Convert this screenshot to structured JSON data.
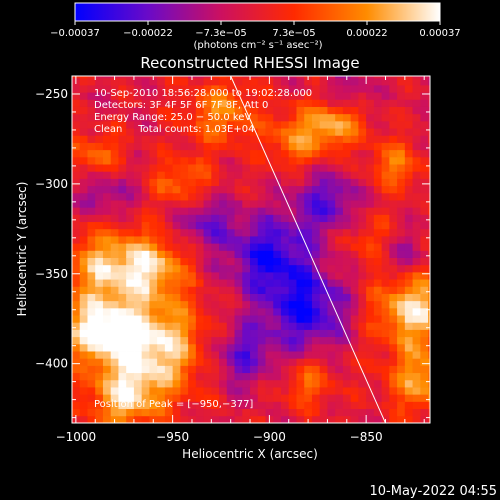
{
  "chart_data": {
    "type": "heatmap",
    "title": "Reconstructed RHESSI Image",
    "xlabel": "Heliocentric X (arcsec)",
    "ylabel": "Heliocentric Y (arcsec)",
    "xlim": [
      -1002,
      -817
    ],
    "ylim": [
      -433,
      -240
    ],
    "x_ticks": [
      -1000,
      -950,
      -900,
      -850
    ],
    "y_ticks": [
      -250,
      -300,
      -350,
      -400
    ],
    "x_tick_labels": [
      "−1000",
      "−950",
      "−900",
      "−850"
    ],
    "y_tick_labels": [
      "−250",
      "−300",
      "−350",
      "−400"
    ],
    "colorbar": {
      "range": [
        -0.00037,
        0.00037
      ],
      "tick_labels": [
        "−0.00037",
        "−0.00022",
        "−7.3e−05",
        "7.3e−05",
        "0.00022",
        "0.00037"
      ],
      "label": "(photons cm⁻² s⁻¹ asec⁻²)",
      "stops": [
        "#0000ff",
        "#6a0ac8",
        "#cc1060",
        "#ff2a00",
        "#ff8c00",
        "#ffffff"
      ]
    },
    "info_lines": [
      "10‑Sep‑2010 18:56:28.000 to 19:02:28.000",
      "Detectors: 3F 4F 5F 6F 7F 8F, Att 0",
      "Energy Range: 25.0 − 50.0 keV",
      "Clean     Total counts: 1.03E+04"
    ],
    "peak_label": "Position of Peak = [−950,−377]",
    "peak": [
      -950,
      -377
    ],
    "limb_line": [
      [
        -920,
        -240
      ],
      [
        -840,
        -433
      ]
    ],
    "blobs": [
      {
        "x": -960,
        "y": -390,
        "v": 1.0,
        "r": 28
      },
      {
        "x": -990,
        "y": -380,
        "v": 0.85,
        "r": 18
      },
      {
        "x": -985,
        "y": -345,
        "v": 0.75,
        "r": 20
      },
      {
        "x": -960,
        "y": -345,
        "v": 0.7,
        "r": 18
      },
      {
        "x": -975,
        "y": -420,
        "v": 0.7,
        "r": 18
      },
      {
        "x": -945,
        "y": -300,
        "v": 0.55,
        "r": 15
      },
      {
        "x": -925,
        "y": -260,
        "v": 0.6,
        "r": 18
      },
      {
        "x": -885,
        "y": -275,
        "v": 0.6,
        "r": 16
      },
      {
        "x": -865,
        "y": -265,
        "v": 0.7,
        "r": 14
      },
      {
        "x": -835,
        "y": -290,
        "v": 0.55,
        "r": 14
      },
      {
        "x": -825,
        "y": -370,
        "v": 0.9,
        "r": 22
      },
      {
        "x": -820,
        "y": -410,
        "v": 0.7,
        "r": 18
      },
      {
        "x": -880,
        "y": -410,
        "v": 0.45,
        "r": 14
      },
      {
        "x": -990,
        "y": -285,
        "v": 0.5,
        "r": 14
      },
      {
        "x": -850,
        "y": -330,
        "v": 0.35,
        "r": 15
      },
      {
        "x": -900,
        "y": -340,
        "v": -0.8,
        "r": 22
      },
      {
        "x": -880,
        "y": -370,
        "v": -0.8,
        "r": 22
      },
      {
        "x": -870,
        "y": -310,
        "v": -0.6,
        "r": 18
      },
      {
        "x": -915,
        "y": -395,
        "v": -0.6,
        "r": 18
      },
      {
        "x": -935,
        "y": -320,
        "v": -0.5,
        "r": 16
      },
      {
        "x": -985,
        "y": -305,
        "v": -0.45,
        "r": 14
      },
      {
        "x": -860,
        "y": -250,
        "v": -0.4,
        "r": 12
      },
      {
        "x": -830,
        "y": -340,
        "v": -0.4,
        "r": 12
      }
    ]
  },
  "footer": {
    "timestamp": "10‑May‑2022 04:55"
  }
}
